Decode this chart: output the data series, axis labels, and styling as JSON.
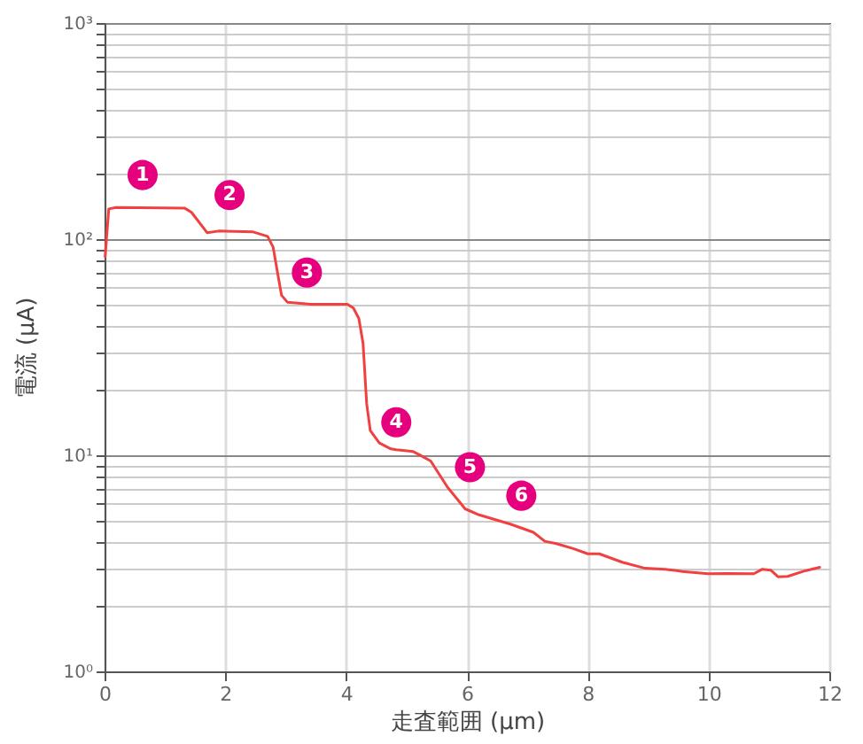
{
  "chart_data": {
    "type": "line",
    "xlabel": "走査範囲 (μm)",
    "ylabel": "電流 (μA)",
    "log": "y",
    "grid": true,
    "marker": "none",
    "line_style": "solid",
    "xlim": [
      0,
      12
    ],
    "xticks": [
      0,
      2,
      4,
      6,
      8,
      10,
      12
    ],
    "ylim": [
      1,
      1000
    ],
    "yticks": [
      {
        "value": 1,
        "label": "10⁰"
      },
      {
        "value": 2,
        "label": null
      },
      {
        "value": 3,
        "label": null
      },
      {
        "value": 4,
        "label": null
      },
      {
        "value": 5,
        "label": null
      },
      {
        "value": 6,
        "label": null
      },
      {
        "value": 7,
        "label": null
      },
      {
        "value": 8,
        "label": null
      },
      {
        "value": 9,
        "label": null
      },
      {
        "value": 10,
        "label": "10¹"
      },
      {
        "value": 20,
        "label": null
      },
      {
        "value": 30,
        "label": null
      },
      {
        "value": 40,
        "label": null
      },
      {
        "value": 50,
        "label": null
      },
      {
        "value": 60,
        "label": null
      },
      {
        "value": 70,
        "label": null
      },
      {
        "value": 80,
        "label": null
      },
      {
        "value": 90,
        "label": null
      },
      {
        "value": 100,
        "label": "10²"
      },
      {
        "value": 200,
        "label": null
      },
      {
        "value": 300,
        "label": null
      },
      {
        "value": 400,
        "label": null
      },
      {
        "value": 500,
        "label": null
      },
      {
        "value": 600,
        "label": null
      },
      {
        "value": 700,
        "label": null
      },
      {
        "value": 800,
        "label": null
      },
      {
        "value": 900,
        "label": null
      },
      {
        "value": 1000,
        "label": "10³"
      }
    ],
    "x": [
      0.01,
      0.07,
      0.19,
      1.33,
      1.44,
      1.7,
      1.89,
      2.46,
      2.7,
      2.79,
      2.86,
      2.93,
      3.03,
      3.41,
      4.02,
      4.12,
      4.21,
      4.28,
      4.34,
      4.4,
      4.55,
      4.74,
      4.83,
      5.11,
      5.21,
      5.4,
      5.68,
      5.97,
      6.2,
      6.72,
      7.1,
      7.29,
      7.48,
      7.76,
      8.0,
      8.19,
      8.57,
      8.95,
      9.28,
      9.57,
      9.99,
      10.32,
      10.75,
      10.89,
      11.03,
      11.15,
      11.31,
      11.6,
      11.84
    ],
    "series": [
      {
        "color": "#f04040",
        "values": [
          83,
          138,
          140,
          139,
          133,
          107,
          109,
          108,
          103,
          92,
          71,
          55,
          51,
          50,
          50,
          48,
          43,
          33,
          17.3,
          13,
          11.4,
          10.7,
          10.6,
          10.4,
          10.06,
          9.4,
          7.1,
          5.65,
          5.3,
          4.8,
          4.4,
          4.0,
          3.9,
          3.7,
          3.5,
          3.5,
          3.2,
          3.0,
          2.97,
          2.9,
          2.83,
          2.84,
          2.83,
          2.97,
          2.94,
          2.74,
          2.75,
          2.92,
          3.03
        ]
      }
    ],
    "annotations": [
      {
        "text": "1",
        "x": 0.63,
        "y": 198
      },
      {
        "text": "2",
        "x": 2.07,
        "y": 160
      },
      {
        "text": "3",
        "x": 3.35,
        "y": 70
      },
      {
        "text": "4",
        "x": 4.83,
        "y": 14.2
      },
      {
        "text": "5",
        "x": 6.05,
        "y": 8.8
      },
      {
        "text": "6",
        "x": 6.9,
        "y": 6.5
      }
    ]
  }
}
